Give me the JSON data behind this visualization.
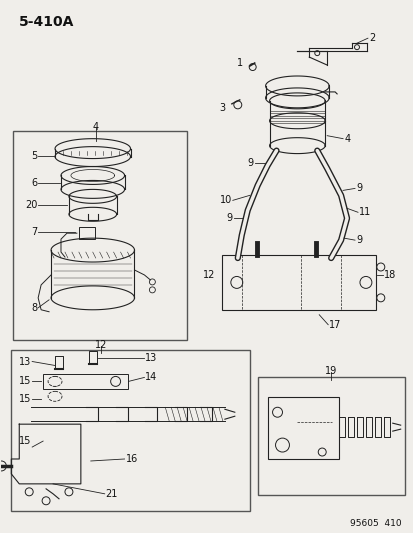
{
  "title": "5-410A",
  "bg_color": "#f0eeea",
  "fig_width": 4.14,
  "fig_height": 5.33,
  "watermark": "95605  410",
  "label_color": "#111111",
  "line_color": "#222222"
}
